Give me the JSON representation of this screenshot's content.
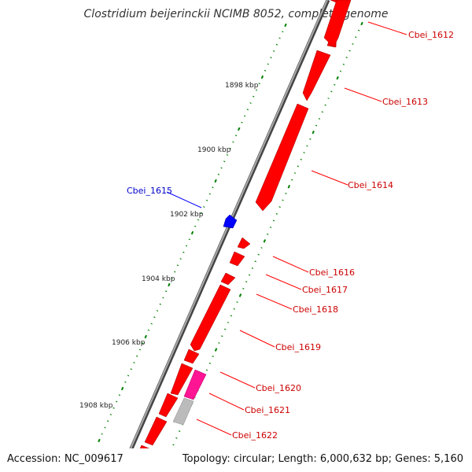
{
  "title": "Clostridium beijerinckii NCIMB 8052, complete genome",
  "footer": {
    "accession": "Accession: NC_009617",
    "summary": "Topology: circular; Length: 6,000,632 bp; Genes: 5,160"
  },
  "colors": {
    "forward_gene": "#ff0000",
    "reverse_gene": "#0000ff",
    "rna_gene": "#ff1493",
    "pseudo_gene": "#bbbbbb",
    "tick": "#008000",
    "backbone": "#777777",
    "forward_label": "#cc0000",
    "reverse_label": "#0000cc"
  },
  "ticks": [
    {
      "label": "1898 kbp"
    },
    {
      "label": "1900 kbp"
    },
    {
      "label": "1902 kbp"
    },
    {
      "label": "1904 kbp"
    },
    {
      "label": "1906 kbp"
    },
    {
      "label": "1908 kbp"
    }
  ],
  "gene_labels": [
    {
      "id": "Cbei_1612",
      "strand": "forward"
    },
    {
      "id": "Cbei_1613",
      "strand": "forward"
    },
    {
      "id": "Cbei_1614",
      "strand": "forward"
    },
    {
      "id": "Cbei_1615",
      "strand": "reverse"
    },
    {
      "id": "Cbei_1616",
      "strand": "forward"
    },
    {
      "id": "Cbei_1617",
      "strand": "forward"
    },
    {
      "id": "Cbei_1618",
      "strand": "forward"
    },
    {
      "id": "Cbei_1619",
      "strand": "forward"
    },
    {
      "id": "Cbei_1620",
      "strand": "forward"
    },
    {
      "id": "Cbei_1621",
      "strand": "forward"
    },
    {
      "id": "Cbei_1622",
      "strand": "forward"
    }
  ]
}
